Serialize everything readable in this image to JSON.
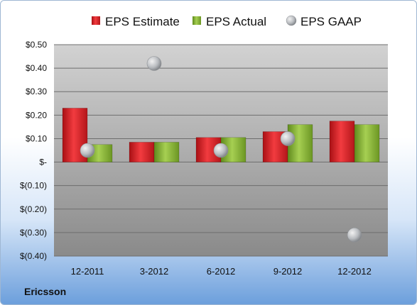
{
  "chart_data": {
    "type": "bar",
    "categories": [
      "12-2011",
      "3-2012",
      "6-2012",
      "9-2012",
      "12-2012"
    ],
    "series": [
      {
        "name": "EPS Estimate",
        "type": "bar",
        "values": [
          0.23,
          0.085,
          0.105,
          0.13,
          0.175
        ],
        "color": "#e0252a"
      },
      {
        "name": "EPS Actual",
        "type": "bar",
        "values": [
          0.075,
          0.085,
          0.105,
          0.16,
          0.16
        ],
        "color": "#8ab832"
      },
      {
        "name": "EPS GAAP",
        "type": "scatter",
        "values": [
          0.05,
          0.42,
          0.05,
          0.1,
          -0.31
        ],
        "color": "#b9bcc0"
      }
    ],
    "y_ticks": [
      "$0.50",
      "$0.40",
      "$0.30",
      "$0.20",
      "$0.10",
      "$-",
      "$(0.10)",
      "$(0.20)",
      "$(0.30)",
      "$(0.40)"
    ],
    "ylim": [
      -0.4,
      0.5
    ],
    "grid": true,
    "legend_position": "top"
  },
  "footer": {
    "company": "Ericsson"
  }
}
